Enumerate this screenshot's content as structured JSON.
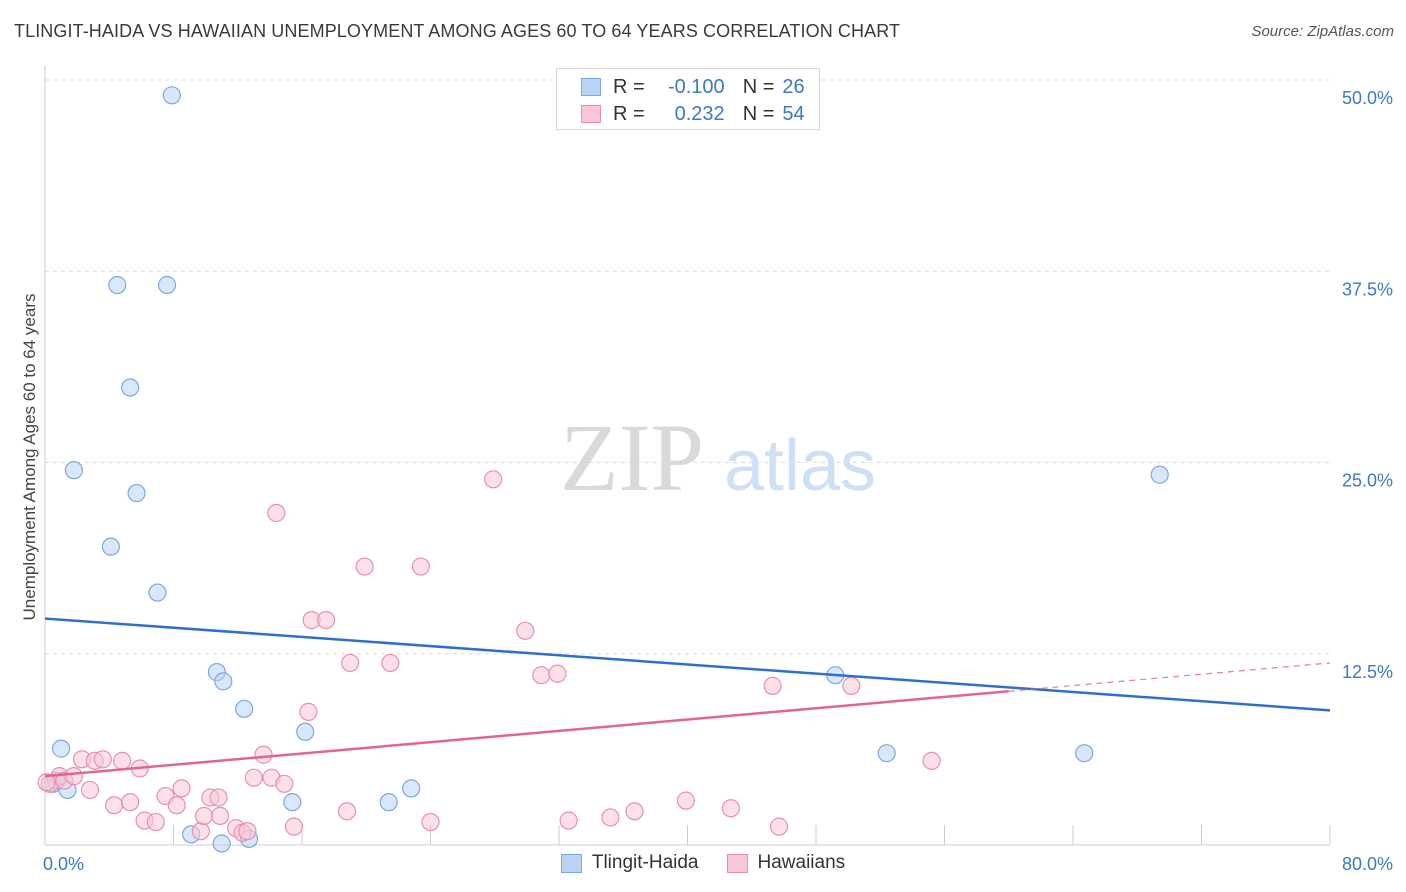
{
  "header": {
    "title": "TLINGIT-HAIDA VS HAWAIIAN UNEMPLOYMENT AMONG AGES 60 TO 64 YEARS CORRELATION CHART",
    "source": "Source: ZipAtlas.com"
  },
  "watermark": {
    "zip": "ZIP",
    "atlas": "atlas"
  },
  "legend": {
    "r_label": "R =",
    "n_label": "N =",
    "series": [
      {
        "name": "Tlingit-Haida",
        "r": "-0.100",
        "n": "26",
        "fill": "#b9d3f5",
        "stroke": "#7ea8df"
      },
      {
        "name": "Hawaiians",
        "r": "0.232",
        "n": "54",
        "fill": "#f8c6d5",
        "stroke": "#e691ae"
      }
    ]
  },
  "colors": {
    "blue_line": "#2f6fc9",
    "pink_line": "#e06590",
    "tick_text": "#3b78c6",
    "grid": "#dcdcdc"
  },
  "chart_data": {
    "type": "scatter",
    "title": "TLINGIT-HAIDA VS HAWAIIAN UNEMPLOYMENT AMONG AGES 60 TO 64 YEARS CORRELATION CHART",
    "xlabel": "",
    "ylabel": "Unemployment Among Ages 60 to 64 years",
    "xlim": [
      0,
      80
    ],
    "ylim": [
      0,
      50
    ],
    "x_tick_labels": [
      "0.0%",
      "80.0%"
    ],
    "y_ticks": [
      12.5,
      25.0,
      37.5,
      50.0
    ],
    "y_tick_labels": [
      "12.5%",
      "25.0%",
      "37.5%",
      "50.0%"
    ],
    "series": [
      {
        "name": "Tlingit-Haida",
        "r": -0.1,
        "n": 26,
        "trend": {
          "x": [
            0,
            80
          ],
          "y": [
            14.8,
            8.8
          ],
          "dashed_from": null
        },
        "points": [
          [
            7.9,
            49.0
          ],
          [
            4.5,
            36.6
          ],
          [
            7.6,
            36.6
          ],
          [
            5.3,
            29.9
          ],
          [
            1.8,
            24.5
          ],
          [
            5.7,
            23.0
          ],
          [
            4.1,
            19.5
          ],
          [
            7.0,
            16.5
          ],
          [
            0.5,
            4.0
          ],
          [
            1.4,
            3.6
          ],
          [
            1.0,
            6.3
          ],
          [
            10.7,
            11.3
          ],
          [
            11.1,
            10.7
          ],
          [
            12.4,
            8.9
          ],
          [
            16.2,
            7.4
          ],
          [
            15.4,
            2.8
          ],
          [
            21.4,
            2.8
          ],
          [
            22.8,
            3.7
          ],
          [
            9.1,
            0.7
          ],
          [
            11.0,
            0.1
          ],
          [
            12.7,
            0.4
          ],
          [
            52.4,
            6.0
          ],
          [
            49.2,
            11.1
          ],
          [
            64.7,
            6.0
          ],
          [
            69.4,
            24.2
          ],
          [
            0.7,
            4.2
          ]
        ]
      },
      {
        "name": "Hawaiians",
        "r": 0.232,
        "n": 54,
        "trend": {
          "x": [
            0,
            80
          ],
          "y": [
            4.5,
            11.9
          ],
          "dashed_from": 60.0
        },
        "points": [
          [
            0.3,
            4.0
          ],
          [
            0.9,
            4.5
          ],
          [
            1.2,
            4.2
          ],
          [
            1.8,
            4.5
          ],
          [
            2.3,
            5.6
          ],
          [
            3.1,
            5.5
          ],
          [
            3.6,
            5.6
          ],
          [
            4.8,
            5.5
          ],
          [
            5.9,
            5.0
          ],
          [
            2.8,
            3.6
          ],
          [
            4.3,
            2.6
          ],
          [
            5.3,
            2.8
          ],
          [
            6.2,
            1.6
          ],
          [
            6.9,
            1.5
          ],
          [
            7.5,
            3.2
          ],
          [
            8.2,
            2.6
          ],
          [
            8.5,
            3.7
          ],
          [
            9.7,
            0.9
          ],
          [
            9.9,
            1.9
          ],
          [
            10.3,
            3.1
          ],
          [
            10.9,
            1.9
          ],
          [
            10.8,
            3.1
          ],
          [
            11.9,
            1.1
          ],
          [
            12.3,
            0.8
          ],
          [
            12.6,
            0.9
          ],
          [
            13.0,
            4.4
          ],
          [
            13.6,
            5.9
          ],
          [
            14.1,
            4.4
          ],
          [
            14.9,
            4.0
          ],
          [
            15.5,
            1.2
          ],
          [
            14.4,
            21.7
          ],
          [
            16.4,
            8.7
          ],
          [
            16.6,
            14.7
          ],
          [
            17.5,
            14.7
          ],
          [
            18.8,
            2.2
          ],
          [
            19.0,
            11.9
          ],
          [
            19.9,
            18.2
          ],
          [
            21.5,
            11.9
          ],
          [
            23.4,
            18.2
          ],
          [
            24.0,
            1.5
          ],
          [
            27.9,
            23.9
          ],
          [
            29.9,
            14.0
          ],
          [
            30.9,
            11.1
          ],
          [
            31.9,
            11.2
          ],
          [
            32.6,
            1.6
          ],
          [
            35.2,
            1.8
          ],
          [
            36.7,
            2.2
          ],
          [
            39.9,
            2.9
          ],
          [
            42.7,
            2.4
          ],
          [
            45.3,
            10.4
          ],
          [
            45.7,
            1.2
          ],
          [
            50.2,
            10.4
          ],
          [
            55.2,
            5.5
          ],
          [
            0.1,
            4.1
          ]
        ]
      }
    ]
  }
}
